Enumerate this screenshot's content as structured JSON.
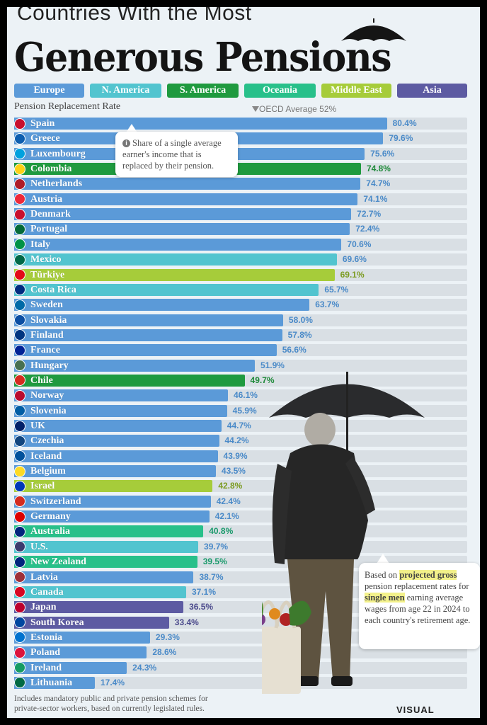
{
  "title": {
    "line1": "Countries With the Most",
    "line2": "Generous Pensions"
  },
  "legend": [
    {
      "label": "Europe",
      "color": "#5b9ad8"
    },
    {
      "label": "N. America",
      "color": "#52c4cf"
    },
    {
      "label": "S. America",
      "color": "#1f9a3f"
    },
    {
      "label": "Oceania",
      "color": "#28c08a"
    },
    {
      "label": "Middle East",
      "color": "#a6cc3a"
    },
    {
      "label": "Asia",
      "color": "#5d5ba2"
    }
  ],
  "axis_label": "Pension Replacement Rate",
  "oecd_label": "OECD Average 52%",
  "tooltip": "Share of a single average earner's income that is replaced by their pension.",
  "note": {
    "p1": "Based on ",
    "h1": "projected gross",
    "p2": "pension replacement rates for ",
    "h2": "single men",
    "p3": " earning average wages from age 22 in 2024 to each country's retirement age."
  },
  "footnote": {
    "line1": "Includes mandatory public and private pension schemes for",
    "line2": "private-sector workers, based on currently legislated rules."
  },
  "brand": "VISUAL",
  "chart_data": {
    "type": "bar",
    "orientation": "horizontal",
    "xlim": [
      0,
      100
    ],
    "reference_line": {
      "label": "OECD Average 52%",
      "value": 52
    },
    "categories": [
      "Spain",
      "Greece",
      "Luxembourg",
      "Colombia",
      "Netherlands",
      "Austria",
      "Denmark",
      "Portugal",
      "Italy",
      "Mexico",
      "Türkiye",
      "Costa Rica",
      "Sweden",
      "Slovakia",
      "Finland",
      "France",
      "Hungary",
      "Chile",
      "Norway",
      "Slovenia",
      "UK",
      "Czechia",
      "Iceland",
      "Belgium",
      "Israel",
      "Switzerland",
      "Germany",
      "Australia",
      "U.S.",
      "New Zealand",
      "Latvia",
      "Canada",
      "Japan",
      "South Korea",
      "Estonia",
      "Poland",
      "Ireland",
      "Lithuania"
    ],
    "values": [
      80.4,
      79.6,
      75.6,
      74.8,
      74.7,
      74.1,
      72.7,
      72.4,
      70.6,
      69.6,
      69.1,
      65.7,
      63.7,
      58.0,
      57.8,
      56.6,
      51.9,
      49.7,
      46.1,
      45.9,
      44.7,
      44.2,
      43.9,
      43.5,
      42.8,
      42.4,
      42.1,
      40.8,
      39.7,
      39.5,
      38.7,
      37.1,
      36.5,
      33.4,
      29.3,
      28.6,
      24.3,
      17.4
    ],
    "value_labels": [
      "80.4%",
      "79.6%",
      "75.6%",
      "74.8%",
      "74.7%",
      "74.1%",
      "72.7%",
      "72.4%",
      "70.6%",
      "69.6%",
      "69.1%",
      "65.7%",
      "63.7%",
      "58.0%",
      "57.8%",
      "56.6%",
      "51.9%",
      "49.7%",
      "46.1%",
      "45.9%",
      "44.7%",
      "44.2%",
      "43.9%",
      "43.5%",
      "42.8%",
      "42.4%",
      "42.1%",
      "40.8%",
      "39.7%",
      "39.5%",
      "38.7%",
      "37.1%",
      "36.5%",
      "33.4%",
      "29.3%",
      "28.6%",
      "24.3%",
      "17.4%"
    ],
    "regions": [
      "Europe",
      "Europe",
      "Europe",
      "S. America",
      "Europe",
      "Europe",
      "Europe",
      "Europe",
      "Europe",
      "N. America",
      "Middle East",
      "N. America",
      "Europe",
      "Europe",
      "Europe",
      "Europe",
      "Europe",
      "S. America",
      "Europe",
      "Europe",
      "Europe",
      "Europe",
      "Europe",
      "Europe",
      "Middle East",
      "Europe",
      "Europe",
      "Oceania",
      "N. America",
      "Oceania",
      "Europe",
      "N. America",
      "Asia",
      "Asia",
      "Europe",
      "Europe",
      "Europe",
      "Europe"
    ],
    "flag_colors": [
      "#c8102e",
      "#0d5eaf",
      "#00a1de",
      "#fcd116",
      "#ae1c28",
      "#ed2939",
      "#c8102e",
      "#046a38",
      "#009246",
      "#006847",
      "#e30a17",
      "#002b7f",
      "#006aa7",
      "#0b4ea2",
      "#003580",
      "#002395",
      "#477050",
      "#d52b1e",
      "#ba0c2f",
      "#005da4",
      "#012169",
      "#11457e",
      "#02529c",
      "#fdda24",
      "#0038b8",
      "#d52b1e",
      "#dd0000",
      "#00247d",
      "#3c3b6e",
      "#00247d",
      "#9e3039",
      "#d80621",
      "#bc002d",
      "#0047a0",
      "#0072ce",
      "#dc143c",
      "#169b62",
      "#006a44"
    ]
  }
}
